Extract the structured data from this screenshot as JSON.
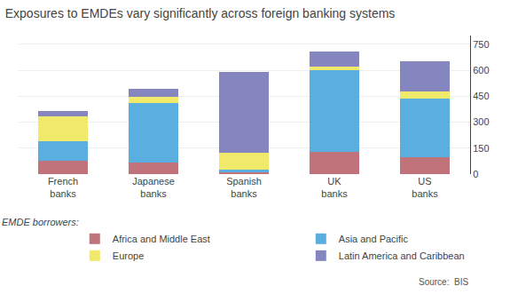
{
  "chart_data": {
    "type": "bar",
    "title": "Exposures to EMDEs vary significantly across foreign banking systems",
    "categories": [
      "French\nbanks",
      "Japanese\nbanks",
      "Spanish\nbanks",
      "UK\nbanks",
      "US\nbanks"
    ],
    "series": [
      {
        "name": "Africa and Middle East",
        "color": "#c0737a",
        "values": [
          75,
          65,
          10,
          130,
          95
        ]
      },
      {
        "name": "Asia and Pacific",
        "color": "#5aafe0",
        "values": [
          115,
          345,
          15,
          470,
          340
        ]
      },
      {
        "name": "Europe",
        "color": "#f0e96a",
        "values": [
          145,
          35,
          100,
          20,
          40
        ]
      },
      {
        "name": "Latin America and Caribbean",
        "color": "#8585c0",
        "values": [
          30,
          45,
          465,
          90,
          175
        ]
      }
    ],
    "stacked": true,
    "ylim": [
      0,
      800
    ],
    "yticks": [
      0,
      150,
      300,
      450,
      600,
      750
    ],
    "grid": true,
    "legend": "bottom",
    "legend_title": "EMDE borrowers:",
    "annotations": [
      "Source:  BIS"
    ]
  }
}
